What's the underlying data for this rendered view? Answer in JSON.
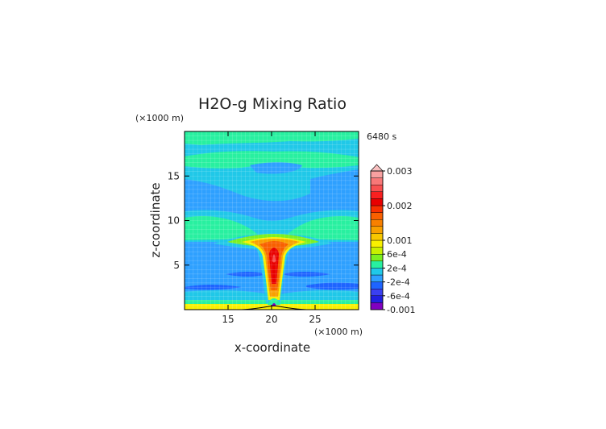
{
  "chart_data": {
    "type": "heatmap",
    "title": "H2O-g Mixing Ratio",
    "xlabel": "x-coordinate",
    "ylabel": "z-coordinate",
    "x_unit": "(×1000 m)",
    "y_unit": "(×1000 m)",
    "time_label": "6480 s",
    "xlim": [
      10,
      30
    ],
    "ylim": [
      0,
      20
    ],
    "x_ticks": [
      15,
      20,
      25
    ],
    "y_ticks": [
      5,
      10,
      15
    ],
    "colorbar": {
      "levels": [
        -0.001,
        -0.0008,
        -0.0006,
        -0.0004,
        -0.0002,
        0,
        0.0002,
        0.0004,
        0.0006,
        0.0008,
        0.001,
        0.0012,
        0.0014,
        0.0016,
        0.0018,
        0.002,
        0.0022,
        0.0024,
        0.0026,
        0.0028,
        0.003
      ],
      "colors": [
        "#8000c0",
        "#2020e0",
        "#3a40f0",
        "#1e64ff",
        "#2ea0ff",
        "#20c8e8",
        "#28f0a0",
        "#7cf020",
        "#c8f000",
        "#f8f000",
        "#f8c800",
        "#f8a000",
        "#f88000",
        "#f86000",
        "#f83000",
        "#e80000",
        "#f82020",
        "#f85050",
        "#f87878",
        "#f8a0a0"
      ],
      "over_color": "#f8c0c0",
      "tick_labels": [
        {
          "value": -0.001,
          "label": "-0.001"
        },
        {
          "value": -0.0006,
          "label": "-6e-4"
        },
        {
          "value": -0.0002,
          "label": "-2e-4"
        },
        {
          "value": 0.0002,
          "label": "2e-4"
        },
        {
          "value": 0.0006,
          "label": "6e-4"
        },
        {
          "value": 0.001,
          "label": "0.001"
        },
        {
          "value": 0.002,
          "label": "0.002"
        },
        {
          "value": 0.003,
          "label": "0.003"
        }
      ]
    }
  }
}
